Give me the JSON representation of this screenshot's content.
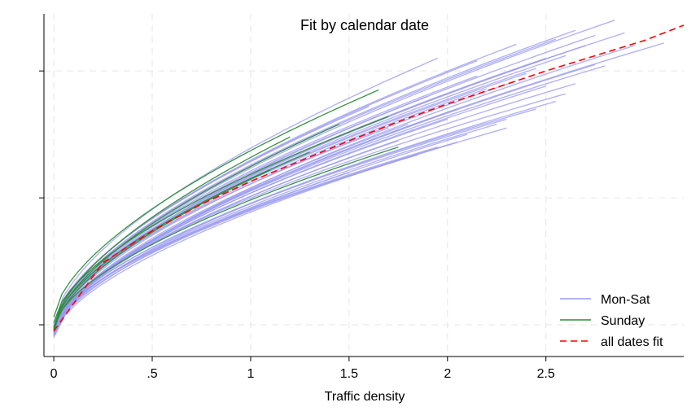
{
  "chart_data": {
    "type": "line",
    "title": "Fit by calendar date",
    "xlabel": "Traffic density",
    "ylabel": "",
    "xlim": [
      -0.05,
      3.2
    ],
    "ylim": [
      -0.25,
      2.45
    ],
    "x_ticks": [
      0,
      0.5,
      1,
      1.5,
      2,
      2.5
    ],
    "x_tick_labels": [
      "0",
      ".5",
      "1",
      "1.5",
      "2",
      "2.5"
    ],
    "y_ticks": [
      0,
      1,
      2
    ],
    "y_tick_labels": [
      "",
      "",
      ""
    ],
    "grid": true,
    "legend_position": "bottom-right",
    "legend": [
      "Mon-Sat",
      "Sunday",
      "all dates fit"
    ],
    "colors": {
      "mon_sat": "#9a9af2",
      "sunday": "#2e8b3a",
      "fit": "#ff0000"
    },
    "series": [
      {
        "name": "Mon-Sat",
        "style": "solid",
        "curves": [
          {
            "x": [
              0,
              2.95
            ],
            "y": [
              -0.1,
              2.2
            ]
          },
          {
            "x": [
              0,
              2.8
            ],
            "y": [
              -0.05,
              2.04
            ]
          },
          {
            "x": [
              0,
              2.65
            ],
            "y": [
              -0.06,
              1.9
            ]
          },
          {
            "x": [
              0,
              2.6
            ],
            "y": [
              -0.02,
              1.82
            ]
          },
          {
            "x": [
              0,
              2.55
            ],
            "y": [
              -0.07,
              1.76
            ]
          },
          {
            "x": [
              0,
              2.45
            ],
            "y": [
              -0.04,
              1.7
            ]
          },
          {
            "x": [
              0,
              2.3
            ],
            "y": [
              -0.03,
              1.62
            ]
          },
          {
            "x": [
              0,
              2.25
            ],
            "y": [
              -0.05,
              1.58
            ]
          },
          {
            "x": [
              0,
              2.1
            ],
            "y": [
              -0.08,
              1.5
            ]
          },
          {
            "x": [
              0,
              2.05
            ],
            "y": [
              -0.06,
              1.44
            ]
          },
          {
            "x": [
              0,
              1.95
            ],
            "y": [
              -0.04,
              1.4
            ]
          },
          {
            "x": [
              0,
              1.85
            ],
            "y": [
              -0.03,
              1.34
            ]
          },
          {
            "x": [
              0,
              2.4
            ],
            "y": [
              -0.02,
              1.98
            ]
          },
          {
            "x": [
              0,
              2.5
            ],
            "y": [
              -0.03,
              2.1
            ]
          },
          {
            "x": [
              0,
              2.7
            ],
            "y": [
              -0.05,
              2.2
            ]
          },
          {
            "x": [
              0,
              2.55
            ],
            "y": [
              -0.02,
              2.25
            ]
          },
          {
            "x": [
              0,
              2.35
            ],
            "y": [
              -0.01,
              2.21
            ]
          },
          {
            "x": [
              0,
              2.15
            ],
            "y": [
              -0.01,
              2.08
            ]
          },
          {
            "x": [
              0,
              1.6
            ],
            "y": [
              0.0,
              1.72
            ]
          },
          {
            "x": [
              0,
              1.95
            ],
            "y": [
              0.01,
              2.1
            ]
          },
          {
            "x": [
              0,
              2.75
            ],
            "y": [
              -0.06,
              2.28
            ]
          },
          {
            "x": [
              0,
              2.85
            ],
            "y": [
              -0.04,
              2.4
            ]
          },
          {
            "x": [
              0,
              3.1
            ],
            "y": [
              -0.07,
              2.22
            ]
          },
          {
            "x": [
              0,
              2.9
            ],
            "y": [
              -0.03,
              2.3
            ]
          },
          {
            "x": [
              0,
              2.6
            ],
            "y": [
              -0.04,
              2.12
            ]
          },
          {
            "x": [
              0,
              2.3
            ],
            "y": [
              -0.09,
              1.55
            ]
          },
          {
            "x": [
              0,
              2.0
            ],
            "y": [
              -0.05,
              1.62
            ]
          },
          {
            "x": [
              0,
              1.8
            ],
            "y": [
              -0.06,
              1.58
            ]
          },
          {
            "x": [
              0,
              2.2
            ],
            "y": [
              -0.04,
              1.86
            ]
          },
          {
            "x": [
              0,
              2.45
            ],
            "y": [
              -0.03,
              2.02
            ]
          },
          {
            "x": [
              0,
              1.7
            ],
            "y": [
              -0.02,
              1.55
            ]
          },
          {
            "x": [
              0,
              2.65
            ],
            "y": [
              -0.02,
              2.32
            ]
          },
          {
            "x": [
              0,
              2.05
            ],
            "y": [
              -0.07,
              1.7
            ]
          },
          {
            "x": [
              0,
              2.35
            ],
            "y": [
              -0.05,
              1.92
            ]
          },
          {
            "x": [
              0,
              2.75
            ],
            "y": [
              -0.08,
              2.05
            ]
          },
          {
            "x": [
              0,
              1.9
            ],
            "y": [
              -0.03,
              1.8
            ]
          },
          {
            "x": [
              0,
              2.15
            ],
            "y": [
              -0.02,
              1.96
            ]
          },
          {
            "x": [
              0,
              2.5
            ],
            "y": [
              -0.06,
              1.88
            ]
          },
          {
            "x": [
              0,
              1.5
            ],
            "y": [
              -0.05,
              1.2
            ]
          },
          {
            "x": [
              0,
              1.75
            ],
            "y": [
              -0.04,
              1.45
            ]
          }
        ]
      },
      {
        "name": "Sunday",
        "style": "solid",
        "curves": [
          {
            "x": [
              0,
              1.65
            ],
            "y": [
              0.06,
              1.85
            ]
          },
          {
            "x": [
              0,
              1.75
            ],
            "y": [
              -0.02,
              1.4
            ]
          },
          {
            "x": [
              0,
              1.7
            ],
            "y": [
              0.02,
              1.64
            ]
          },
          {
            "x": [
              0,
              1.2
            ],
            "y": [
              -0.03,
              1.48
            ]
          },
          {
            "x": [
              0,
              1.45
            ],
            "y": [
              -0.04,
              1.58
            ]
          },
          {
            "x": [
              0,
              1.3
            ],
            "y": [
              -0.02,
              1.36
            ]
          },
          {
            "x": [
              0,
              1.1
            ],
            "y": [
              -0.05,
              1.22
            ]
          }
        ]
      },
      {
        "name": "all dates fit",
        "style": "dashed",
        "x": [
          0,
          0.25,
          0.5,
          0.75,
          1.0,
          1.25,
          1.5,
          1.75,
          2.0,
          2.25,
          2.5,
          2.75,
          3.0,
          3.2
        ],
        "y": [
          -0.05,
          0.49,
          0.74,
          0.95,
          1.13,
          1.29,
          1.45,
          1.6,
          1.74,
          1.87,
          2.0,
          2.12,
          2.24,
          2.36
        ]
      }
    ]
  }
}
